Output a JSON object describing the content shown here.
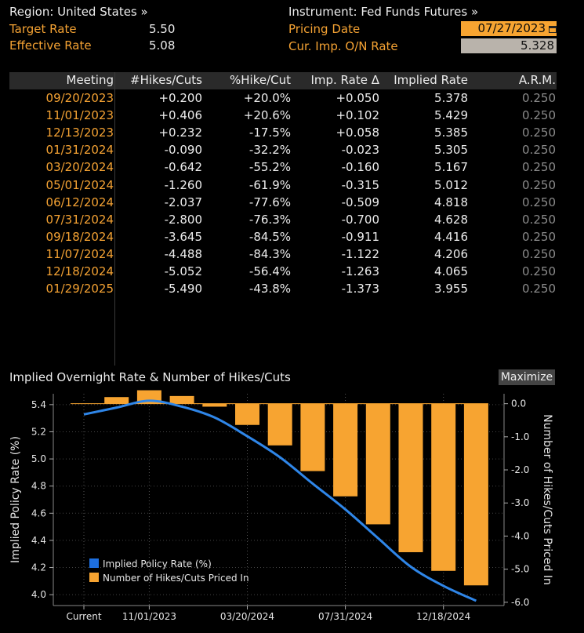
{
  "top": {
    "region_label": "Region: United States »",
    "target_rate_label": "Target Rate",
    "target_rate_value": "5.50",
    "effective_rate_label": "Effective Rate",
    "effective_rate_value": "5.08",
    "instrument_label": "Instrument: Fed Funds Futures »",
    "pricing_date_label": "Pricing Date",
    "pricing_date_value": "07/27/2023",
    "cur_imp_label": "Cur. Imp. O/N Rate",
    "cur_imp_value": "5.328"
  },
  "table": {
    "headers": [
      "Meeting",
      "#Hikes/Cuts",
      "%Hike/Cut",
      "Imp. Rate Δ",
      "Implied Rate",
      "A.R.M."
    ],
    "rows": [
      [
        "09/20/2023",
        "+0.200",
        "+20.0%",
        "+0.050",
        "5.378",
        "0.250"
      ],
      [
        "11/01/2023",
        "+0.406",
        "+20.6%",
        "+0.102",
        "5.429",
        "0.250"
      ],
      [
        "12/13/2023",
        "+0.232",
        "-17.5%",
        "+0.058",
        "5.385",
        "0.250"
      ],
      [
        "01/31/2024",
        "-0.090",
        "-32.2%",
        "-0.023",
        "5.305",
        "0.250"
      ],
      [
        "03/20/2024",
        "-0.642",
        "-55.2%",
        "-0.160",
        "5.167",
        "0.250"
      ],
      [
        "05/01/2024",
        "-1.260",
        "-61.9%",
        "-0.315",
        "5.012",
        "0.250"
      ],
      [
        "06/12/2024",
        "-2.037",
        "-77.6%",
        "-0.509",
        "4.818",
        "0.250"
      ],
      [
        "07/31/2024",
        "-2.800",
        "-76.3%",
        "-0.700",
        "4.628",
        "0.250"
      ],
      [
        "09/18/2024",
        "-3.645",
        "-84.5%",
        "-0.911",
        "4.416",
        "0.250"
      ],
      [
        "11/07/2024",
        "-4.488",
        "-84.3%",
        "-1.122",
        "4.206",
        "0.250"
      ],
      [
        "12/18/2024",
        "-5.052",
        "-56.4%",
        "-1.263",
        "4.065",
        "0.250"
      ],
      [
        "01/29/2025",
        "-5.490",
        "-43.8%",
        "-1.373",
        "3.955",
        "0.250"
      ]
    ]
  },
  "chart_panel": {
    "title": "Implied Overnight Rate & Number of Hikes/Cuts",
    "maximize_label": "Maximize"
  },
  "colors": {
    "orange": "#f7a431",
    "line_blue": "#2f86e8",
    "legend_blue": "#1d6fe0"
  },
  "chart_data": {
    "type": "bar",
    "categories": [
      "Current",
      "09/20/2023",
      "11/01/2023",
      "12/13/2023",
      "01/31/2024",
      "03/20/2024",
      "05/01/2024",
      "06/12/2024",
      "07/31/2024",
      "09/18/2024",
      "11/07/2024",
      "12/18/2024",
      "01/29/2025"
    ],
    "x_tick_labels": [
      "Current",
      "11/01/2023",
      "03/20/2024",
      "07/31/2024",
      "12/18/2024"
    ],
    "ylabel_left": "Implied Policy Rate (%)",
    "ylabel_right": "Number of Hikes/Cuts Priced In",
    "ylim_left": [
      3.92,
      5.48
    ],
    "ylim_right": [
      -6.1,
      0.3
    ],
    "left_ticks": [
      "4.0",
      "4.2",
      "4.4",
      "4.6",
      "4.8",
      "5.0",
      "5.2",
      "5.4"
    ],
    "right_ticks": [
      "0.0",
      "-1.0",
      "-2.0",
      "-3.0",
      "-4.0",
      "-5.0",
      "-6.0"
    ],
    "series": [
      {
        "name": "Implied Policy Rate (%)",
        "type": "line",
        "axis": "left",
        "values": [
          5.328,
          5.378,
          5.429,
          5.385,
          5.305,
          5.167,
          5.012,
          4.818,
          4.628,
          4.416,
          4.206,
          4.065,
          3.955
        ]
      },
      {
        "name": "Number of Hikes/Cuts Priced In",
        "type": "bar",
        "axis": "right",
        "values": [
          0,
          0.2,
          0.406,
          0.232,
          -0.09,
          -0.642,
          -1.26,
          -2.037,
          -2.8,
          -3.645,
          -4.488,
          -5.052,
          -5.49
        ]
      }
    ],
    "grid": true,
    "legend_position": "bottom-left"
  }
}
